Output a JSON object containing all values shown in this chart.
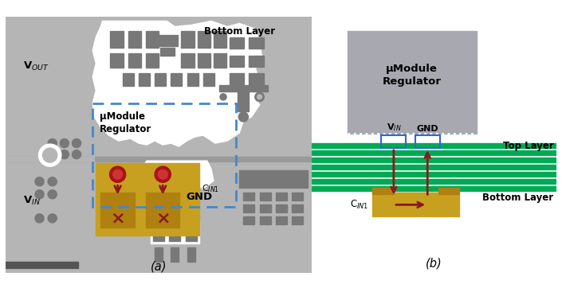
{
  "fig_bg": "#ffffff",
  "pcb_bg": "#b5b5b5",
  "comp_dark": "#787878",
  "white": "#ffffff",
  "gold": "#c8a020",
  "gold_dark": "#b08010",
  "arrow_color": "#8b1a1a",
  "dashed_color": "#4488cc",
  "green_layer": "#00aa55",
  "module_gray": "#a8a8b0",
  "blue_box": "#3366cc",
  "panel_a": "(a)",
  "panel_b": "(b)",
  "vout": "V$_{OUT}$",
  "vin": "V$_{IN}$",
  "gnd": "GND",
  "bottom_layer": "Bottom Layer",
  "top_layer": "Top Layer",
  "umodule": "μModule\nRegulator",
  "cin1": "C$_{IN1}$",
  "vin_label": "V$_{IN}$",
  "gnd_label": "GND"
}
